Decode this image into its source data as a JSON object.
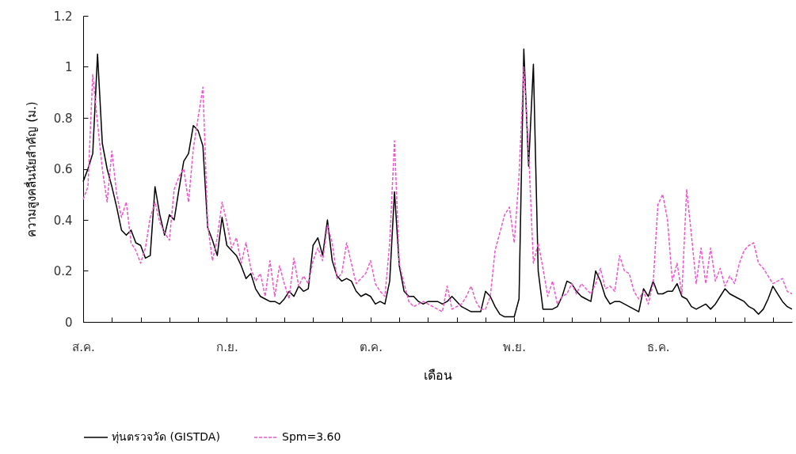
{
  "chart_data": {
    "type": "line",
    "xlabel": "เดือน",
    "ylabel": "ความสูงคลื่นนัยสำคัญ (ม.)",
    "categories": [
      "ส.ค.",
      null,
      null,
      null,
      null,
      null,
      null,
      null,
      null,
      null,
      null,
      null,
      null,
      null,
      null,
      null,
      null,
      null,
      null,
      null,
      null,
      null,
      null,
      null,
      null,
      null,
      null,
      null,
      null,
      null,
      "ก.ย.",
      null,
      null,
      null,
      null,
      null,
      null,
      null,
      null,
      null,
      null,
      null,
      null,
      null,
      null,
      null,
      null,
      null,
      null,
      null,
      null,
      null,
      null,
      null,
      null,
      null,
      null,
      null,
      null,
      null,
      "ต.ค.",
      null,
      null,
      null,
      null,
      null,
      null,
      null,
      null,
      null,
      null,
      null,
      null,
      null,
      null,
      null,
      null,
      null,
      null,
      null,
      null,
      null,
      null,
      null,
      null,
      null,
      null,
      null,
      null,
      null,
      "พ.ย.",
      null,
      null,
      null,
      null,
      null,
      null,
      null,
      null,
      null,
      null,
      null,
      null,
      null,
      null,
      null,
      null,
      null,
      null,
      null,
      null,
      null,
      null,
      null,
      null,
      null,
      null,
      null,
      null,
      null,
      "ธ.ค.",
      null,
      null,
      null,
      null,
      null,
      null,
      null,
      null,
      null,
      null,
      null,
      null,
      null,
      null,
      null,
      null,
      null,
      null,
      null,
      null,
      null,
      null,
      null,
      null,
      null,
      null,
      null,
      null
    ],
    "ylim": [
      0,
      1.2
    ],
    "yticks": [
      0,
      0.2,
      0.4,
      0.6,
      0.8,
      1,
      1.2
    ],
    "grid": false,
    "legend": "bottom",
    "marker": "none",
    "series": [
      {
        "name": "ทุ่นตรวจวัด (GISTDA)",
        "color": "#000000",
        "line_style": "solid",
        "values": [
          0.55,
          0.6,
          0.66,
          1.05,
          0.7,
          0.6,
          0.53,
          0.45,
          0.36,
          0.34,
          0.36,
          0.31,
          0.3,
          0.25,
          0.26,
          0.53,
          0.42,
          0.34,
          0.42,
          0.4,
          0.52,
          0.63,
          0.66,
          0.77,
          0.75,
          0.69,
          0.37,
          0.32,
          0.26,
          0.41,
          0.3,
          0.28,
          0.26,
          0.22,
          0.17,
          0.19,
          0.13,
          0.1,
          0.09,
          0.08,
          0.08,
          0.07,
          0.09,
          0.12,
          0.1,
          0.14,
          0.12,
          0.13,
          0.3,
          0.33,
          0.26,
          0.4,
          0.24,
          0.18,
          0.16,
          0.17,
          0.16,
          0.12,
          0.1,
          0.11,
          0.1,
          0.07,
          0.08,
          0.07,
          0.16,
          0.51,
          0.22,
          0.12,
          0.1,
          0.1,
          0.08,
          0.07,
          0.08,
          0.08,
          0.08,
          0.07,
          0.08,
          0.1,
          0.08,
          0.06,
          0.05,
          0.04,
          0.04,
          0.04,
          0.12,
          0.1,
          0.06,
          0.03,
          0.02,
          0.02,
          0.02,
          0.09,
          1.07,
          0.61,
          1.01,
          0.2,
          0.05,
          0.05,
          0.05,
          0.06,
          0.1,
          0.16,
          0.15,
          0.12,
          0.1,
          0.09,
          0.08,
          0.2,
          0.16,
          0.1,
          0.07,
          0.08,
          0.08,
          0.07,
          0.06,
          0.05,
          0.04,
          0.13,
          0.1,
          0.16,
          0.11,
          0.11,
          0.12,
          0.12,
          0.15,
          0.1,
          0.09,
          0.06,
          0.05,
          0.06,
          0.07,
          0.05,
          0.07,
          0.1,
          0.13,
          0.11,
          0.1,
          0.09,
          0.08,
          0.06,
          0.05,
          0.03,
          0.05,
          0.09,
          0.14,
          0.11,
          0.08,
          0.06,
          0.05
        ]
      },
      {
        "name": "Spm=3.60",
        "color": "#ee55cc",
        "line_style": "dashed",
        "values": [
          0.48,
          0.53,
          0.97,
          0.78,
          0.6,
          0.47,
          0.67,
          0.5,
          0.41,
          0.47,
          0.31,
          0.28,
          0.23,
          0.29,
          0.41,
          0.47,
          0.39,
          0.35,
          0.32,
          0.52,
          0.57,
          0.6,
          0.47,
          0.68,
          0.8,
          0.92,
          0.38,
          0.24,
          0.33,
          0.47,
          0.39,
          0.29,
          0.33,
          0.23,
          0.31,
          0.21,
          0.16,
          0.19,
          0.1,
          0.24,
          0.1,
          0.22,
          0.15,
          0.09,
          0.25,
          0.14,
          0.18,
          0.15,
          0.24,
          0.29,
          0.24,
          0.38,
          0.31,
          0.17,
          0.19,
          0.31,
          0.23,
          0.15,
          0.17,
          0.19,
          0.24,
          0.15,
          0.12,
          0.1,
          0.31,
          0.71,
          0.23,
          0.15,
          0.08,
          0.06,
          0.07,
          0.08,
          0.07,
          0.06,
          0.05,
          0.04,
          0.14,
          0.05,
          0.06,
          0.07,
          0.1,
          0.14,
          0.08,
          0.05,
          0.05,
          0.1,
          0.28,
          0.35,
          0.42,
          0.45,
          0.31,
          0.57,
          1.0,
          0.67,
          0.23,
          0.31,
          0.21,
          0.1,
          0.16,
          0.07,
          0.1,
          0.11,
          0.15,
          0.11,
          0.15,
          0.13,
          0.11,
          0.15,
          0.21,
          0.13,
          0.14,
          0.12,
          0.26,
          0.2,
          0.19,
          0.12,
          0.09,
          0.12,
          0.07,
          0.15,
          0.46,
          0.5,
          0.4,
          0.16,
          0.23,
          0.11,
          0.52,
          0.34,
          0.15,
          0.29,
          0.15,
          0.29,
          0.16,
          0.21,
          0.14,
          0.18,
          0.15,
          0.23,
          0.28,
          0.3,
          0.31,
          0.23,
          0.21,
          0.18,
          0.15,
          0.16,
          0.17,
          0.12,
          0.11
        ]
      }
    ]
  }
}
